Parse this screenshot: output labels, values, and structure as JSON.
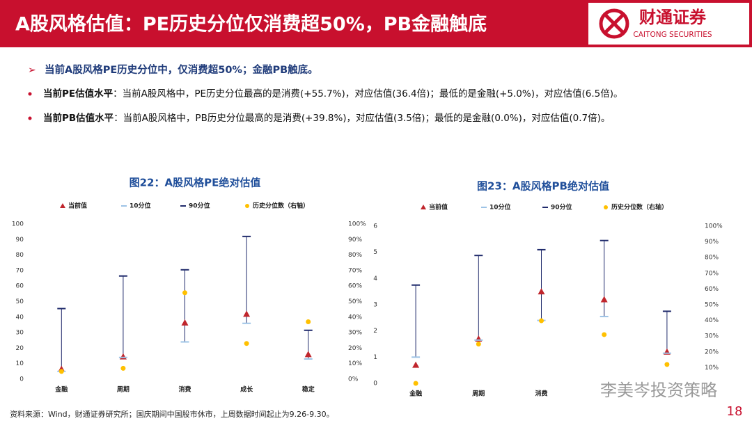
{
  "header": {
    "title": "A股风格估值：PE历史分位仅消费超50%，PB金融触底",
    "logo": "财通证券",
    "logo_en": "CAITONG SECURITIES"
  },
  "bullets": [
    {
      "text": "当前A股风格PE历史分位中，仅消费超50%；金融PB触底。"
    },
    {
      "label": "当前PE估值水平",
      "text": "：当前A股风格中，PE历史分位最高的是消费(+55.7%)，对应估值(36.4倍)；最低的是金融(+5.0%)，对应估值(6.5倍)。"
    },
    {
      "label": "当前PB估值水平",
      "text": "：当前A股风格中，PB历史分位最高的是消费(+39.8%)，对应估值(3.5倍)；最低的是金融(0.0%)，对应估值(0.7倍)。"
    }
  ],
  "chart_data": [
    {
      "type": "range",
      "title": "图22：A股风格PE绝对估值",
      "categories": [
        "金融",
        "周期",
        "消费",
        "成长",
        "稳定"
      ],
      "series": [
        {
          "name": "当前值",
          "color": "#c0262d",
          "marker": "triangle",
          "values": [
            6.5,
            14.5,
            36.4,
            42,
            16
          ]
        },
        {
          "name": "10分位",
          "color": "#9dc3e6",
          "marker": "dash",
          "values": [
            5,
            14,
            24,
            36,
            13
          ]
        },
        {
          "name": "90分位",
          "color": "#1f2a6b",
          "marker": "dash",
          "values": [
            45.5,
            66.5,
            70.5,
            92,
            31.5
          ]
        },
        {
          "name": "历史分位数（右轴）",
          "color": "#ffc000",
          "marker": "circle",
          "axis": "y2",
          "values": [
            5.0,
            7,
            55.7,
            23,
            37
          ]
        }
      ],
      "ylim": [
        0,
        100
      ],
      "yticks": [
        0,
        10,
        20,
        30,
        40,
        50,
        60,
        70,
        80,
        90,
        100
      ],
      "y2lim": [
        0,
        100
      ],
      "y2ticks": [
        {
          "value": 0,
          "label": "0%"
        },
        {
          "value": 10,
          "label": "10%"
        },
        {
          "value": 20,
          "label": "20%"
        },
        {
          "value": 30,
          "label": "30%"
        },
        {
          "value": 40,
          "label": "40%"
        },
        {
          "value": 50,
          "label": "50%"
        },
        {
          "value": 60,
          "label": "60%"
        },
        {
          "value": 70,
          "label": "70%"
        },
        {
          "value": 80,
          "label": "80%"
        },
        {
          "value": 90,
          "label": "90%"
        },
        {
          "value": 100,
          "label": "100%"
        }
      ]
    },
    {
      "type": "range",
      "title": "图23：A股风格PB绝对估值",
      "categories": [
        "金融",
        "周期",
        "消费",
        null,
        null
      ],
      "series": [
        {
          "name": "当前值",
          "color": "#c0262d",
          "marker": "triangle",
          "values": [
            0.7,
            1.7,
            3.5,
            3.2,
            1.2
          ]
        },
        {
          "name": "10分位",
          "color": "#9dc3e6",
          "marker": "dash",
          "values": [
            1.0,
            1.65,
            2.4,
            2.55,
            1.15
          ]
        },
        {
          "name": "90分位",
          "color": "#1f2a6b",
          "marker": "dash",
          "values": [
            3.75,
            4.88,
            5.1,
            5.45,
            2.75
          ]
        },
        {
          "name": "历史分位数（右轴）",
          "color": "#ffc000",
          "marker": "circle",
          "axis": "y2",
          "values": [
            0.0,
            25,
            39.8,
            31,
            12
          ]
        }
      ],
      "ylim": [
        0,
        6
      ],
      "yticks": [
        0,
        1,
        2,
        3,
        4,
        5,
        6
      ],
      "y2lim": [
        0,
        100
      ],
      "y2ticks": [
        {
          "value": 10,
          "label": "10%"
        },
        {
          "value": 20,
          "label": "20%"
        },
        {
          "value": 30,
          "label": "30%"
        },
        {
          "value": 40,
          "label": "40%"
        },
        {
          "value": 50,
          "label": "50%"
        },
        {
          "value": 60,
          "label": "60%"
        },
        {
          "value": 70,
          "label": "70%"
        },
        {
          "value": 80,
          "label": "80%"
        },
        {
          "value": 90,
          "label": "90%"
        },
        {
          "value": 100,
          "label": "100%"
        }
      ]
    }
  ],
  "source": "资料来源：Wind，财通证券研究所；国庆期间中国股市休市，上周数据时间起止为9.26-9.30。",
  "watermark": "李美岑投资策略",
  "page_number": "18"
}
